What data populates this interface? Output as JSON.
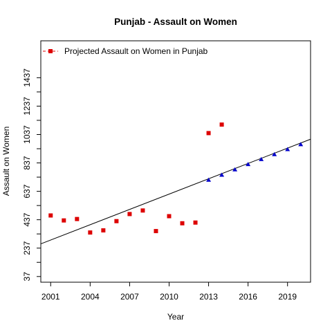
{
  "chart_data": {
    "type": "scatter",
    "title": "Punjab  -  Assault on Women",
    "xlabel": "Year",
    "ylabel": "Assault on Women",
    "xlim": [
      2000.25,
      2020.75
    ],
    "ylim": [
      -3,
      1697
    ],
    "x_ticks": [
      2001,
      2004,
      2007,
      2010,
      2013,
      2016,
      2019
    ],
    "y_ticks": [
      37,
      237,
      437,
      637,
      837,
      1037,
      1237,
      1437
    ],
    "legend": {
      "position": "top-left",
      "entries": [
        {
          "label": "Projected  Assault on Women  in  Punjab"
        }
      ]
    },
    "series": [
      {
        "marker": "square",
        "color": "#dd0000",
        "x": [
          2001,
          2002,
          2003,
          2004,
          2005,
          2006,
          2007,
          2008,
          2009,
          2010,
          2011,
          2012,
          2013,
          2014
        ],
        "y": [
          467,
          432,
          442,
          347,
          362,
          427,
          477,
          502,
          357,
          462,
          412,
          417,
          1047,
          1107
        ]
      },
      {
        "marker": "triangle",
        "color": "#0000cc",
        "x": [
          2013,
          2014,
          2015,
          2016,
          2017,
          2018,
          2019,
          2020
        ],
        "y": [
          717,
          752,
          790,
          827,
          862,
          897,
          932,
          967
        ]
      }
    ],
    "trendline": {
      "color": "#000000",
      "x": [
        2000.25,
        2020.75
      ],
      "y": [
        267,
        1004
      ]
    }
  }
}
